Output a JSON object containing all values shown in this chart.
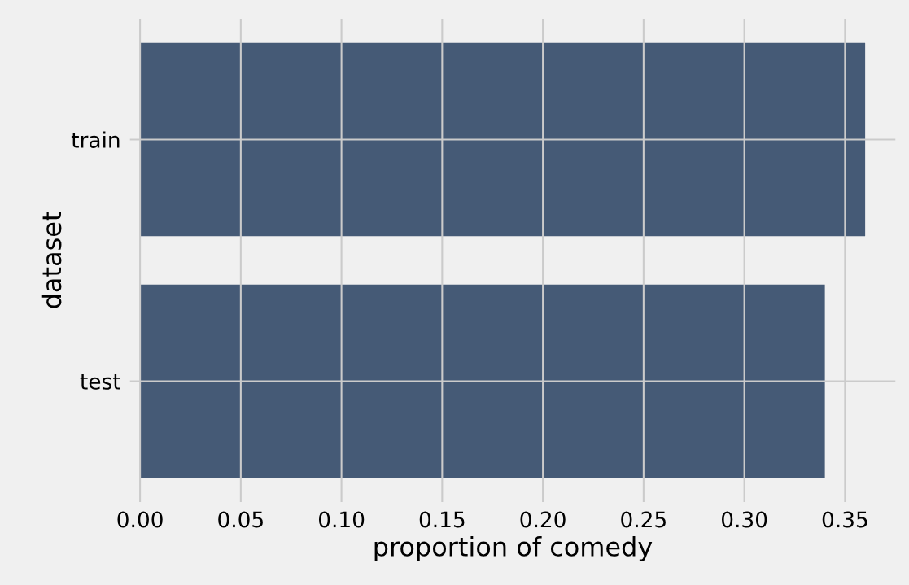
{
  "chart_data": {
    "type": "bar",
    "orientation": "horizontal",
    "categories": [
      "train",
      "test"
    ],
    "values": [
      0.36,
      0.34
    ],
    "color": "#455a76",
    "xlabel": "proportion of comedy",
    "ylabel": "dataset",
    "xlim": [
      -0.005,
      0.375
    ],
    "xticks": [
      {
        "value": 0,
        "label": "0.00"
      },
      0.05,
      {
        "value": 0.1,
        "label": "0.10"
      },
      0.15,
      {
        "value": 0.2,
        "label": "0.20"
      },
      0.25,
      {
        "value": 0.3,
        "label": "0.30"
      },
      0.35
    ],
    "grid": true
  }
}
